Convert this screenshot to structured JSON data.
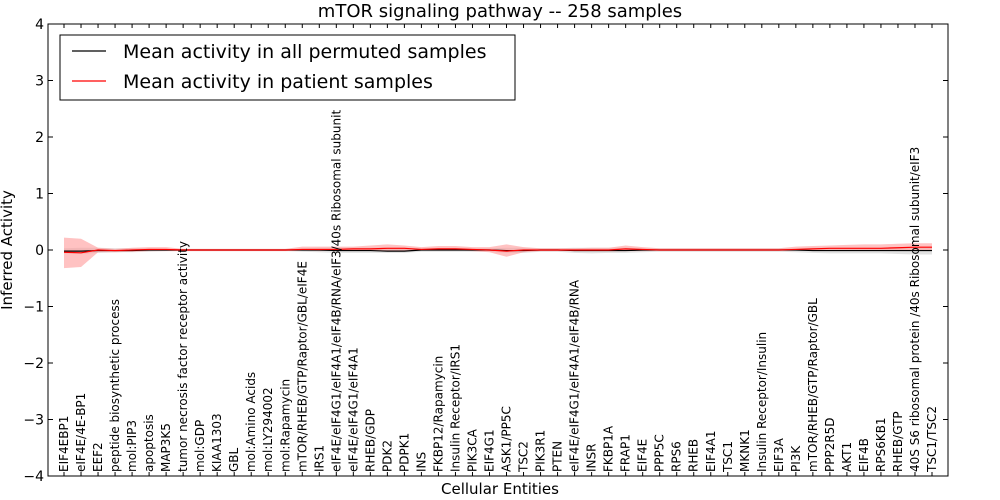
{
  "chart_data": {
    "type": "line",
    "title": "mTOR signaling pathway -- 258 samples",
    "xlabel": "Cellular Entities",
    "ylabel": "Inferred Activity",
    "ylim": [
      -4,
      4
    ],
    "yticks": [
      -4,
      -3,
      -2,
      -1,
      0,
      1,
      2,
      3,
      4
    ],
    "ytick_labels": [
      "−4",
      "−3",
      "−2",
      "−1",
      "0",
      "1",
      "2",
      "3",
      "4"
    ],
    "categories": [
      "EIF4EBP1",
      "eIF4E/4E-BP1",
      "EEF2",
      "peptide biosynthetic process",
      "mol:PIP3",
      "apoptosis",
      "MAP3K5",
      "tumor necrosis factor receptor activity",
      "mol:GDP",
      "KIAA1303",
      "GBL",
      "mol:Amino Acids",
      "mol:LY294002",
      "mol:Rapamycin",
      "mTOR/RHEB/GTP/Raptor/GBL/eIF4E",
      "IRS1",
      "eIF4E/eIF4G1/eIF4A1/eIF4B/RNA/eIF3/40s Ribosomal subunit",
      "eIF4E/eIF4G1/eIF4A1",
      "RHEB/GDP",
      "PDK2",
      "PDPK1",
      "INS",
      "FKBP12/Rapamycin",
      "Insulin Receptor/IRS1",
      "PIK3CA",
      "EIF4G1",
      "ASK1/PP5C",
      "TSC2",
      "PIK3R1",
      "PTEN",
      "eIF4E/eIF4G1/eIF4A1/eIF4B/RNA",
      "INSR",
      "FKBP1A",
      "FRAP1",
      "EIF4E",
      "PPP5C",
      "RPS6",
      "RHEB",
      "EIF4A1",
      "TSC1",
      "MKNK1",
      "Insulin Receptor/Insulin",
      "EIF3A",
      "PI3K",
      "mTOR/RHEB/GTP/Raptor/GBL",
      "PPP2R5D",
      "AKT1",
      "EIF4B",
      "RPS6KB1",
      "RHEB/GTP",
      "40S S6 ribosomal protein /40s Ribosomal subunit/eIF3",
      "TSC1/TSC2"
    ],
    "series": [
      {
        "name": "Mean activity in all permuted samples",
        "color": "#000000",
        "band_color": "#c8c8c8",
        "values": [
          -0.02,
          -0.02,
          -0.01,
          -0.01,
          -0.01,
          0.0,
          0.0,
          0.0,
          0.0,
          0.0,
          0.0,
          0.0,
          0.0,
          0.0,
          0.0,
          0.0,
          -0.01,
          -0.01,
          -0.01,
          -0.02,
          -0.02,
          0.0,
          0.0,
          0.0,
          0.0,
          0.0,
          -0.01,
          -0.01,
          0.0,
          0.0,
          -0.01,
          -0.01,
          -0.01,
          -0.01,
          0.0,
          0.0,
          0.0,
          0.0,
          0.0,
          0.0,
          0.0,
          0.0,
          0.0,
          0.0,
          -0.01,
          -0.01,
          -0.01,
          -0.01,
          -0.01,
          -0.01,
          -0.01,
          -0.01
        ],
        "lower": [
          -0.06,
          -0.07,
          -0.05,
          -0.04,
          -0.04,
          -0.03,
          -0.02,
          -0.02,
          -0.02,
          -0.02,
          -0.02,
          -0.02,
          -0.02,
          -0.02,
          -0.03,
          -0.04,
          -0.05,
          -0.05,
          -0.05,
          -0.05,
          -0.05,
          -0.03,
          -0.03,
          -0.03,
          -0.03,
          -0.03,
          -0.05,
          -0.05,
          -0.03,
          -0.03,
          -0.05,
          -0.06,
          -0.05,
          -0.05,
          -0.04,
          -0.03,
          -0.03,
          -0.03,
          -0.03,
          -0.03,
          -0.03,
          -0.03,
          -0.03,
          -0.04,
          -0.05,
          -0.06,
          -0.06,
          -0.06,
          -0.06,
          -0.07,
          -0.08,
          -0.08
        ],
        "upper": [
          0.03,
          0.04,
          0.04,
          0.03,
          0.03,
          0.03,
          0.02,
          0.02,
          0.02,
          0.02,
          0.02,
          0.02,
          0.02,
          0.02,
          0.03,
          0.04,
          0.04,
          0.04,
          0.04,
          0.04,
          0.04,
          0.03,
          0.03,
          0.03,
          0.03,
          0.03,
          0.04,
          0.04,
          0.03,
          0.03,
          0.04,
          0.04,
          0.04,
          0.04,
          0.03,
          0.03,
          0.03,
          0.03,
          0.03,
          0.03,
          0.03,
          0.03,
          0.03,
          0.03,
          0.04,
          0.04,
          0.04,
          0.04,
          0.04,
          0.04,
          0.04,
          0.04
        ]
      },
      {
        "name": "Mean activity in patient samples",
        "color": "#ff0000",
        "band_color": "#ff9999",
        "values": [
          -0.04,
          -0.05,
          0.0,
          -0.01,
          0.0,
          0.01,
          0.01,
          0.0,
          0.0,
          0.0,
          0.0,
          0.0,
          0.0,
          0.0,
          0.01,
          0.01,
          0.01,
          0.02,
          0.02,
          0.03,
          0.03,
          0.01,
          0.02,
          0.02,
          0.01,
          0.0,
          -0.02,
          0.0,
          0.0,
          0.0,
          0.0,
          0.0,
          0.0,
          0.02,
          0.01,
          0.0,
          0.0,
          0.0,
          0.0,
          0.0,
          0.0,
          0.0,
          0.0,
          0.01,
          0.02,
          0.03,
          0.03,
          0.03,
          0.03,
          0.04,
          0.05,
          0.05
        ],
        "lower": [
          -0.32,
          -0.3,
          -0.04,
          -0.04,
          -0.03,
          -0.02,
          -0.02,
          -0.02,
          -0.02,
          -0.02,
          -0.02,
          -0.02,
          -0.02,
          -0.02,
          -0.01,
          -0.02,
          -0.01,
          0.0,
          -0.01,
          -0.02,
          -0.01,
          -0.01,
          0.0,
          0.0,
          -0.02,
          -0.04,
          -0.12,
          -0.04,
          -0.02,
          -0.02,
          -0.02,
          -0.02,
          -0.02,
          -0.02,
          -0.02,
          -0.01,
          -0.01,
          -0.01,
          -0.01,
          -0.01,
          -0.01,
          -0.01,
          -0.01,
          -0.01,
          -0.01,
          -0.01,
          0.0,
          0.0,
          0.0,
          0.0,
          0.0,
          0.0
        ],
        "upper": [
          0.22,
          0.2,
          0.04,
          0.02,
          0.04,
          0.05,
          0.05,
          0.02,
          0.02,
          0.02,
          0.02,
          0.02,
          0.02,
          0.02,
          0.06,
          0.06,
          0.06,
          0.06,
          0.08,
          0.1,
          0.08,
          0.05,
          0.07,
          0.07,
          0.05,
          0.05,
          0.1,
          0.05,
          0.03,
          0.03,
          0.03,
          0.04,
          0.04,
          0.08,
          0.05,
          0.03,
          0.03,
          0.03,
          0.03,
          0.03,
          0.03,
          0.03,
          0.03,
          0.06,
          0.07,
          0.08,
          0.09,
          0.1,
          0.1,
          0.11,
          0.12,
          0.12
        ]
      }
    ],
    "legend": {
      "placement": "top-left"
    }
  }
}
